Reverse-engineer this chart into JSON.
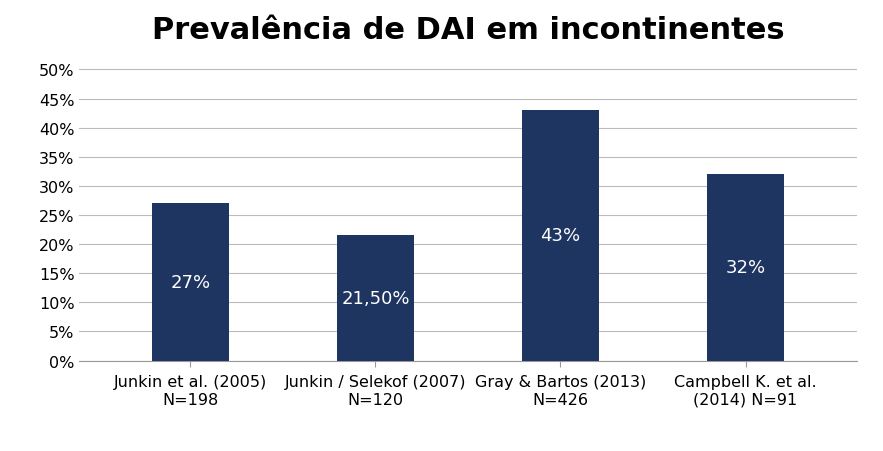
{
  "title": "Prevalência de DAI em incontinentes",
  "categories": [
    "Junkin et al. (2005)\nN=198",
    "Junkin / Selekof (2007)\nN=120",
    "Gray & Bartos (2013)\nN=426",
    "Campbell K. et al.\n(2014) N=91"
  ],
  "values": [
    0.27,
    0.215,
    0.43,
    0.32
  ],
  "labels": [
    "27%",
    "21,50%",
    "43%",
    "32%"
  ],
  "bar_color": "#1e3461",
  "label_color": "#ffffff",
  "background_color": "#ffffff",
  "ylim": [
    0,
    0.52
  ],
  "yticks": [
    0.0,
    0.05,
    0.1,
    0.15,
    0.2,
    0.25,
    0.3,
    0.35,
    0.4,
    0.45,
    0.5
  ],
  "ytick_labels": [
    "0%",
    "5%",
    "10%",
    "15%",
    "20%",
    "25%",
    "30%",
    "35%",
    "40%",
    "45%",
    "50%"
  ],
  "title_fontsize": 22,
  "tick_fontsize": 11.5,
  "label_fontsize": 13,
  "grid_color": "#bbbbbb",
  "bar_width": 0.42
}
